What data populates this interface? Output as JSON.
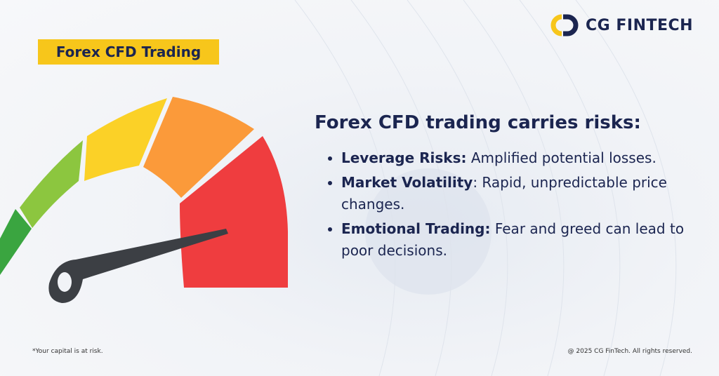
{
  "logo": {
    "text": "CG FINTECH"
  },
  "badge": {
    "text": "Forex CFD Trading"
  },
  "heading": "Forex CFD trading carries risks:",
  "bullets": [
    {
      "bold": "Leverage Risks:",
      "text": " Amplified potential losses."
    },
    {
      "bold": "Market Volatility",
      "text": ": Rapid, unpredictable price changes."
    },
    {
      "bold": "Emotional Trading:",
      "text": " Fear and greed can lead to poor decisions."
    }
  ],
  "footer": {
    "left": "*Your capital is at risk.",
    "right": "@ 2025 CG FinTech. All rights reserved."
  }
}
